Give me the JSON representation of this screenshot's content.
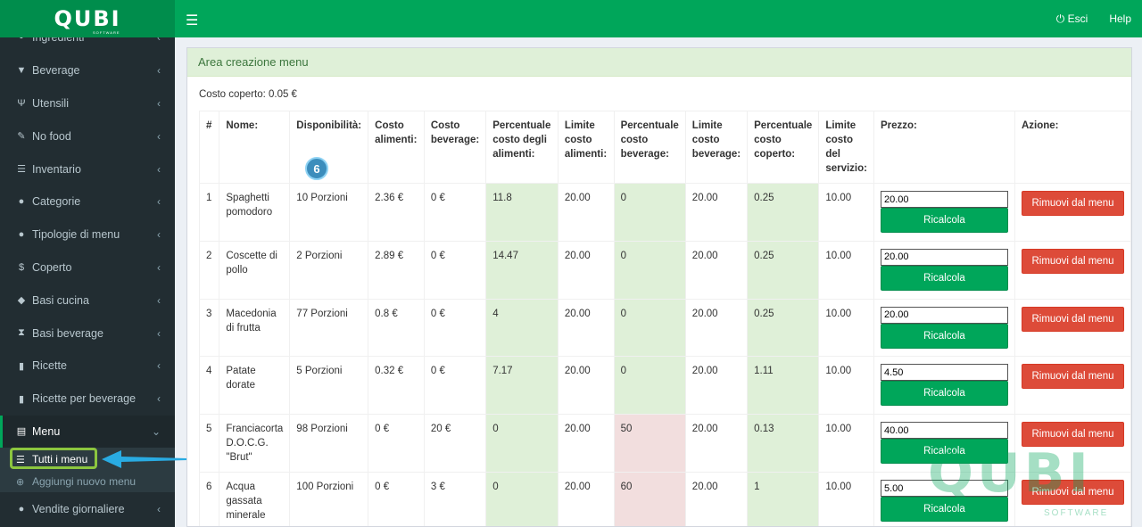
{
  "app": {
    "logo": "QUBI",
    "logo_sub": "SOFTWARE"
  },
  "topbar": {
    "logout": "Esci",
    "help": "Help"
  },
  "sidebar": {
    "items": [
      {
        "label": "Ingredienti",
        "icon": "ingredient-icon",
        "glyph": "▪"
      },
      {
        "label": "Beverage",
        "icon": "glass-icon",
        "glyph": "▼"
      },
      {
        "label": "Utensili",
        "icon": "cutlery-icon",
        "glyph": "Ψ"
      },
      {
        "label": "No food",
        "icon": "wrench-icon",
        "glyph": "✎"
      },
      {
        "label": "Inventario",
        "icon": "list-icon",
        "glyph": "☰"
      },
      {
        "label": "Categorie",
        "icon": "info-icon",
        "glyph": "●"
      },
      {
        "label": "Tipologie di menu",
        "icon": "info-icon",
        "glyph": "●"
      },
      {
        "label": "Coperto",
        "icon": "dollar-icon",
        "glyph": "$"
      },
      {
        "label": "Basi cucina",
        "icon": "cube-icon",
        "glyph": "◆"
      },
      {
        "label": "Basi beverage",
        "icon": "hourglass-icon",
        "glyph": "⧗"
      },
      {
        "label": "Ricette",
        "icon": "file-icon",
        "glyph": "▮"
      },
      {
        "label": "Ricette per beverage",
        "icon": "file-icon",
        "glyph": "▮"
      },
      {
        "label": "Menu",
        "icon": "menu-list-icon",
        "glyph": "▤"
      }
    ],
    "sub": [
      {
        "label": "Tutti i menu",
        "glyph": "☰"
      },
      {
        "label": "Aggiungi nuovo menu",
        "glyph": "⊕"
      }
    ],
    "after": {
      "label": "Vendite giornaliere",
      "glyph": "●"
    }
  },
  "panel": {
    "title": "Area creazione menu",
    "coperto": "Costo coperto: 0.05 €"
  },
  "badge": "6",
  "table": {
    "headers": [
      "#",
      "Nome:",
      "Disponibilità:",
      "Costo alimenti:",
      "Costo beverage:",
      "Percentuale costo degli alimenti:",
      "Limite costo alimenti:",
      "Percentuale costo beverage:",
      "Limite costo beverage:",
      "Percentuale costo coperto:",
      "Limite costo del servizio:",
      "Prezzo:",
      "Azione:"
    ],
    "recalc_label": "Ricalcola",
    "remove_label": "Rimuovi dal menu",
    "rows": [
      {
        "n": "1",
        "name": "Spaghetti pomodoro",
        "disp": "10 Porzioni",
        "ca": "2.36 €",
        "cb": "0 €",
        "pa": "11.8",
        "la": "20.00",
        "pb": "0",
        "lb": "20.00",
        "pc": "0.25",
        "ls": "10.00",
        "price": "20.00",
        "pb_red": false
      },
      {
        "n": "2",
        "name": "Coscette di pollo",
        "disp": "2 Porzioni",
        "ca": "2.89 €",
        "cb": "0 €",
        "pa": "14.47",
        "la": "20.00",
        "pb": "0",
        "lb": "20.00",
        "pc": "0.25",
        "ls": "10.00",
        "price": "20.00",
        "pb_red": false
      },
      {
        "n": "3",
        "name": "Macedonia di frutta",
        "disp": "77 Porzioni",
        "ca": "0.8 €",
        "cb": "0 €",
        "pa": "4",
        "la": "20.00",
        "pb": "0",
        "lb": "20.00",
        "pc": "0.25",
        "ls": "10.00",
        "price": "20.00",
        "pb_red": false
      },
      {
        "n": "4",
        "name": "Patate dorate",
        "disp": "5 Porzioni",
        "ca": "0.32 €",
        "cb": "0 €",
        "pa": "7.17",
        "la": "20.00",
        "pb": "0",
        "lb": "20.00",
        "pc": "1.11",
        "ls": "10.00",
        "price": "4.50",
        "pb_red": false
      },
      {
        "n": "5",
        "name": "Franciacorta D.O.C.G. \"Brut\"",
        "disp": "98 Porzioni",
        "ca": "0 €",
        "cb": "20 €",
        "pa": "0",
        "la": "20.00",
        "pb": "50",
        "lb": "20.00",
        "pc": "0.13",
        "ls": "10.00",
        "price": "40.00",
        "pb_red": true
      },
      {
        "n": "6",
        "name": "Acqua gassata minerale",
        "disp": "100 Porzioni",
        "ca": "0 €",
        "cb": "3 €",
        "pa": "0",
        "la": "20.00",
        "pb": "60",
        "lb": "20.00",
        "pc": "1",
        "ls": "10.00",
        "price": "5.00",
        "pb_red": true
      }
    ]
  },
  "colors": {
    "sidebar": "#222d32",
    "topbar": "#00a65a",
    "logo_bg": "#008d4c",
    "success": "#00a65a",
    "danger": "#dd4b39",
    "green_cell": "#dff0d8",
    "red_cell": "#f2dede"
  }
}
